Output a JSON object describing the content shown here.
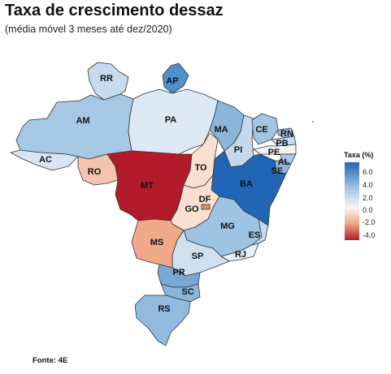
{
  "title": "Taxa de crescimento dessaz",
  "subtitle": "(média móvel 3 meses até dez/2020)",
  "source": "Fonte: 4E",
  "legend": {
    "title": "Taxa (%)",
    "ticks": [
      "6.0",
      "4.0",
      "2.0",
      "0.0",
      "-2.0",
      "-4.0"
    ]
  },
  "map_data": {
    "type": "choropleth",
    "variable": "Taxa (%)",
    "color_scale": {
      "low": "#b31b2a",
      "mid": "#f7f7f7",
      "high": "#2166b4"
    },
    "states": [
      {
        "code": "AC",
        "color": "#d7e6f3"
      },
      {
        "code": "AM",
        "color": "#a7c8e4"
      },
      {
        "code": "RR",
        "color": "#c6dbee"
      },
      {
        "code": "AP",
        "color": "#4f8fcb"
      },
      {
        "code": "PA",
        "color": "#dde9f4"
      },
      {
        "code": "RO",
        "color": "#f5c4b0"
      },
      {
        "code": "MT",
        "color": "#b31b2a"
      },
      {
        "code": "TO",
        "color": "#fbe0d2"
      },
      {
        "code": "MA",
        "color": "#8bb6dc"
      },
      {
        "code": "PI",
        "color": "#c4d9ed"
      },
      {
        "code": "CE",
        "color": "#a5c6e3"
      },
      {
        "code": "RN",
        "color": "#9cc1e1"
      },
      {
        "code": "PB",
        "color": "#c6dbee"
      },
      {
        "code": "PE",
        "color": "#f3f3f3"
      },
      {
        "code": "AL",
        "color": "#a7c8e4"
      },
      {
        "code": "SE",
        "color": "#8cb7dc"
      },
      {
        "code": "BA",
        "color": "#2166b4"
      },
      {
        "code": "GO",
        "color": "#fae0d3"
      },
      {
        "code": "DF",
        "color": "#d98c7a"
      },
      {
        "code": "MG",
        "color": "#9fc3e2"
      },
      {
        "code": "ES",
        "color": "#c4d9ed"
      },
      {
        "code": "RJ",
        "color": "#e7eff7"
      },
      {
        "code": "SP",
        "color": "#cfe1f1"
      },
      {
        "code": "MS",
        "color": "#f1a989"
      },
      {
        "code": "PR",
        "color": "#78a9d6"
      },
      {
        "code": "SC",
        "color": "#8bb6dc"
      },
      {
        "code": "RS",
        "color": "#92badf"
      }
    ]
  }
}
